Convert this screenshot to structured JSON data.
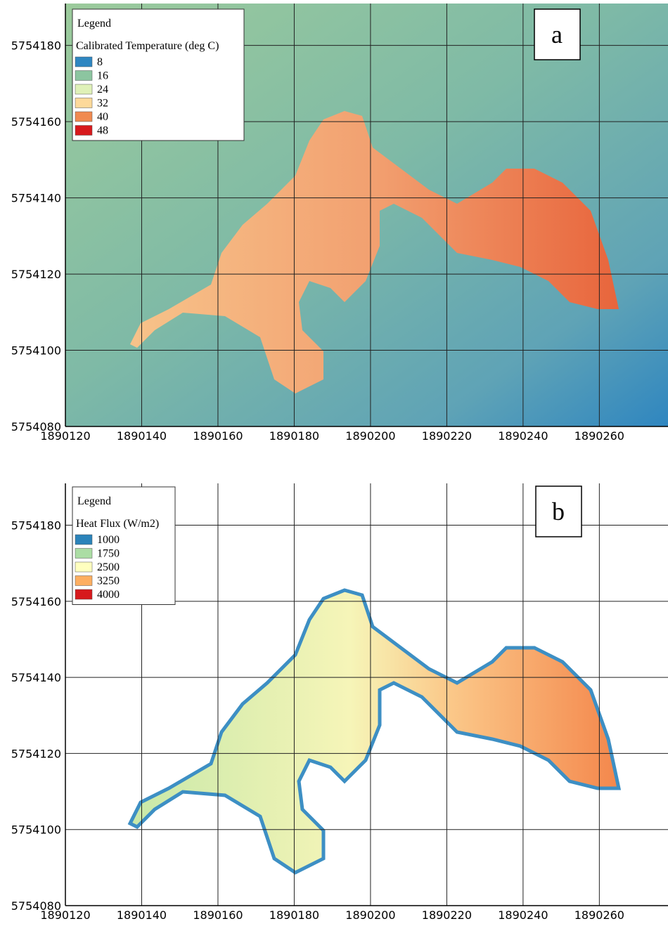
{
  "maps": [
    {
      "label": "a",
      "legend_heading": "Legend",
      "legend_title": "Calibrated Temperature (deg C)",
      "legend": [
        {
          "value": 8,
          "color": "#2e86c1"
        },
        {
          "value": 16,
          "color": "#8cc5a0"
        },
        {
          "value": 24,
          "color": "#dff1b8"
        },
        {
          "value": 32,
          "color": "#fdd99a"
        },
        {
          "value": 40,
          "color": "#f08a50"
        },
        {
          "value": 48,
          "color": "#d7191c"
        }
      ],
      "xlim": [
        1890120,
        1890278
      ],
      "ylim": [
        5754080,
        5754191
      ],
      "xticks": [
        1890120,
        1890140,
        1890160,
        1890180,
        1890200,
        1890220,
        1890240,
        1890260
      ],
      "yticks": [
        5754080,
        5754100,
        5754120,
        5754140,
        5754160,
        5754180
      ]
    },
    {
      "label": "b",
      "legend_heading": "Legend",
      "legend_title": "Heat Flux (W/m2)",
      "legend": [
        {
          "value": 1000,
          "color": "#2b83ba"
        },
        {
          "value": 1750,
          "color": "#abdda4"
        },
        {
          "value": 2500,
          "color": "#ffffbf"
        },
        {
          "value": 3250,
          "color": "#fdae61"
        },
        {
          "value": 4000,
          "color": "#d7191c"
        }
      ],
      "xlim": [
        1890120,
        1890278
      ],
      "ylim": [
        5754080,
        5754191
      ],
      "xticks": [
        1890120,
        1890140,
        1890160,
        1890180,
        1890200,
        1890220,
        1890240,
        1890260
      ],
      "yticks": [
        5754080,
        5754100,
        5754120,
        5754140,
        5754160,
        5754180
      ]
    }
  ]
}
